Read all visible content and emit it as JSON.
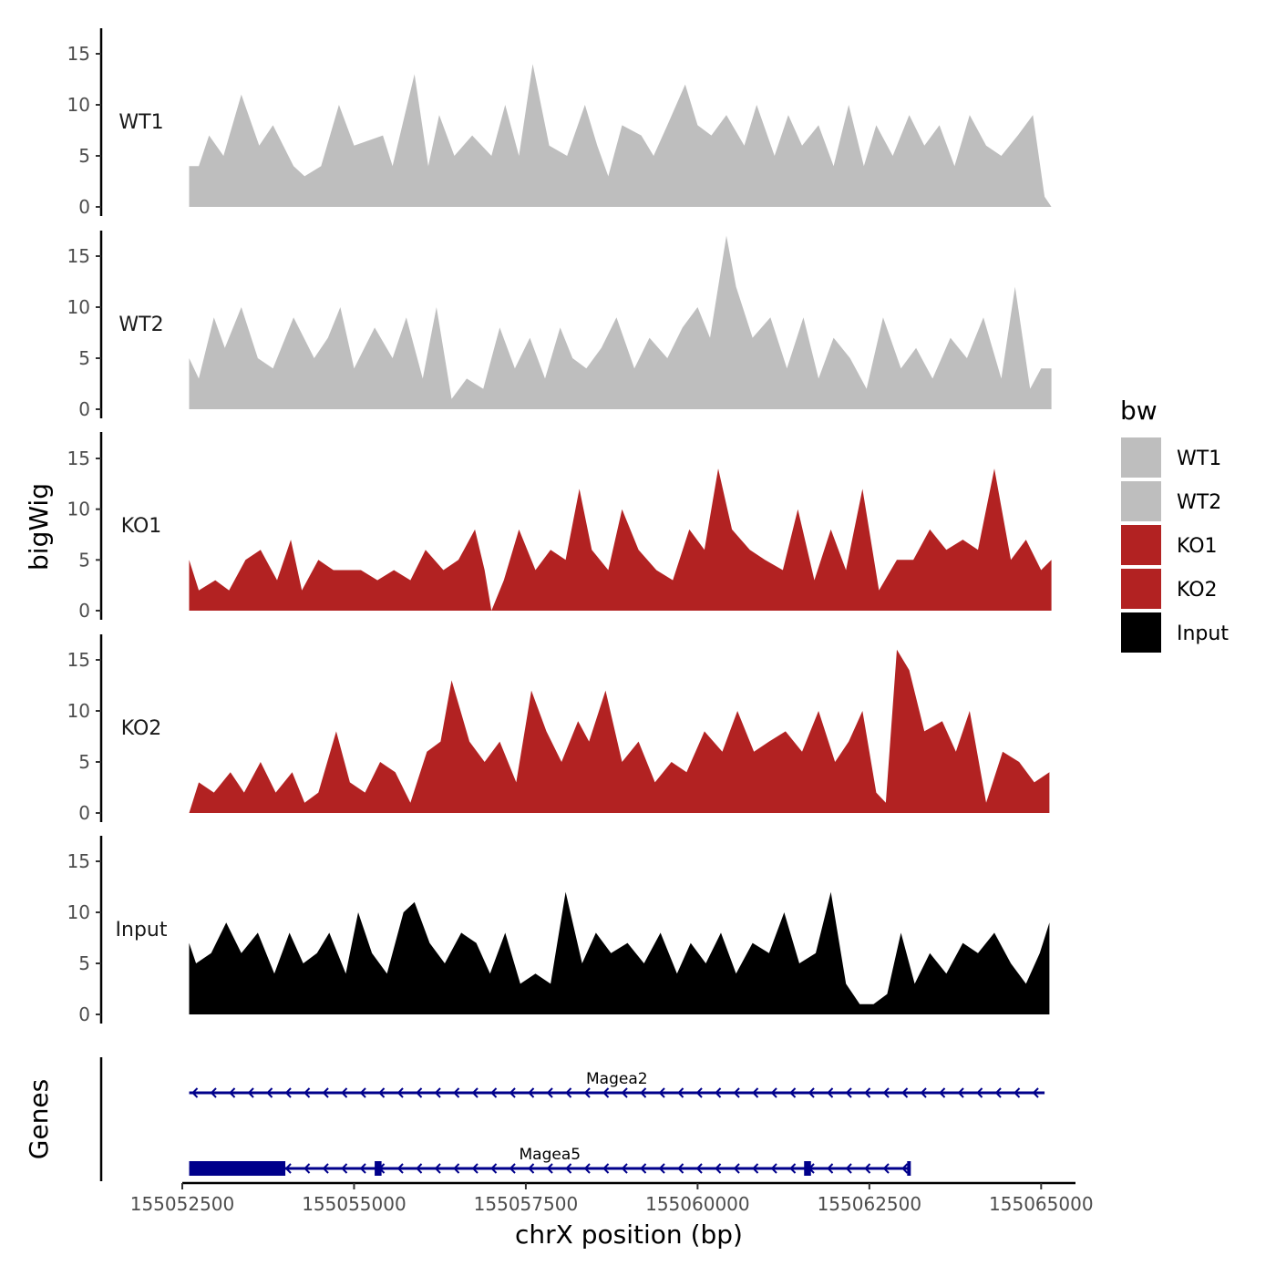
{
  "chart_data": {
    "type": "area",
    "ylabel": "bigWig",
    "xlabel": "chrX position (bp)",
    "xlim": [
      155052500,
      155065500
    ],
    "ylim": [
      0,
      17
    ],
    "y_ticks": [
      0,
      5,
      10,
      15
    ],
    "x_ticks": [
      155052500,
      155055000,
      155057500,
      155060000,
      155062500,
      155065000
    ],
    "x_tick_labels": [
      "155052500",
      "155055000",
      "155057500",
      "155060000",
      "155062500",
      "155065000"
    ],
    "legend": {
      "title": "bw",
      "placement": "right",
      "entries": [
        {
          "label": "WT1",
          "color": "#bebebe"
        },
        {
          "label": "WT2",
          "color": "#bebebe"
        },
        {
          "label": "KO1",
          "color": "#b22222"
        },
        {
          "label": "KO2",
          "color": "#b22222"
        },
        {
          "label": "Input",
          "color": "#000000"
        }
      ]
    },
    "series": [
      {
        "name": "WT1",
        "color": "#bebebe",
        "x": [
          155052600,
          155052740,
          155052890,
          155053100,
          155053360,
          155053620,
          155053820,
          155054120,
          155054280,
          155054520,
          155054780,
          155055000,
          155055420,
          155055560,
          155055880,
          155056080,
          155056240,
          155056460,
          155056720,
          155057000,
          155057200,
          155057400,
          155057600,
          155057840,
          155058100,
          155058360,
          155058540,
          155058700,
          155058900,
          155059180,
          155059360,
          155059560,
          155059820,
          155060000,
          155060200,
          155060420,
          155060680,
          155060860,
          155061120,
          155061320,
          155061520,
          155061760,
          155061980,
          155062200,
          155062420,
          155062600,
          155062840,
          155063080,
          155063300,
          155063520,
          155063740,
          155063960,
          155064200,
          155064420,
          155064660,
          155064880,
          155065050,
          155065150
        ],
        "values": [
          4,
          4,
          7,
          5,
          11,
          6,
          8,
          4,
          3,
          4,
          10,
          6,
          7,
          4,
          13,
          4,
          9,
          5,
          7,
          5,
          10,
          5,
          14,
          6,
          5,
          10,
          6,
          3,
          8,
          7,
          5,
          8,
          12,
          8,
          7,
          9,
          6,
          10,
          5,
          9,
          6,
          8,
          4,
          10,
          4,
          8,
          5,
          9,
          6,
          8,
          4,
          9,
          6,
          5,
          7,
          9,
          1,
          0
        ]
      },
      {
        "name": "WT2",
        "color": "#bebebe",
        "x": [
          155052600,
          155052740,
          155052960,
          155053120,
          155053360,
          155053600,
          155053820,
          155054120,
          155054420,
          155054620,
          155054800,
          155055000,
          155055300,
          155055560,
          155055760,
          155056000,
          155056200,
          155056420,
          155056640,
          155056880,
          155057120,
          155057340,
          155057560,
          155057780,
          155058000,
          155058180,
          155058380,
          155058600,
          155058820,
          155059080,
          155059300,
          155059560,
          155059780,
          155060000,
          155060180,
          155060420,
          155060560,
          155060800,
          155061060,
          155061300,
          155061540,
          155061760,
          155061980,
          155062220,
          155062460,
          155062700,
          155062960,
          155063180,
          155063420,
          155063680,
          155063920,
          155064160,
          155064420,
          155064620,
          155064840,
          155065000,
          155065150
        ],
        "values": [
          5,
          3,
          9,
          6,
          10,
          5,
          4,
          9,
          5,
          7,
          10,
          4,
          8,
          5,
          9,
          3,
          10,
          1,
          3,
          2,
          8,
          4,
          7,
          3,
          8,
          5,
          4,
          6,
          9,
          4,
          7,
          5,
          8,
          10,
          7,
          17,
          12,
          7,
          9,
          4,
          9,
          3,
          7,
          5,
          2,
          9,
          4,
          6,
          3,
          7,
          5,
          9,
          3,
          12,
          2,
          4,
          4
        ]
      },
      {
        "name": "KO1",
        "color": "#b22222",
        "x": [
          155052600,
          155052740,
          155052980,
          155053180,
          155053420,
          155053640,
          155053880,
          155054080,
          155054240,
          155054480,
          155054700,
          155054900,
          155055100,
          155055340,
          155055580,
          155055820,
          155056040,
          155056300,
          155056520,
          155056760,
          155056900,
          155057000,
          155057180,
          155057400,
          155057640,
          155057860,
          155058080,
          155058280,
          155058460,
          155058700,
          155058900,
          155059140,
          155059400,
          155059640,
          155059880,
          155060100,
          155060300,
          155060500,
          155060760,
          155060980,
          155061240,
          155061460,
          155061700,
          155061940,
          155062160,
          155062400,
          155062640,
          155062900,
          155063140,
          155063380,
          155063620,
          155063860,
          155064080,
          155064320,
          155064560,
          155064780,
          155065000,
          155065150
        ],
        "values": [
          5,
          2,
          3,
          2,
          5,
          6,
          3,
          7,
          2,
          5,
          4,
          4,
          4,
          3,
          4,
          3,
          6,
          4,
          5,
          8,
          4,
          0,
          3,
          8,
          4,
          6,
          5,
          12,
          6,
          4,
          10,
          6,
          4,
          3,
          8,
          6,
          14,
          8,
          6,
          5,
          4,
          10,
          3,
          8,
          4,
          12,
          2,
          5,
          5,
          8,
          6,
          7,
          6,
          14,
          5,
          7,
          4,
          5
        ]
      },
      {
        "name": "KO2",
        "color": "#b22222",
        "x": [
          155052600,
          155052740,
          155052960,
          155053200,
          155053400,
          155053640,
          155053860,
          155054100,
          155054280,
          155054480,
          155054740,
          155054940,
          155055160,
          155055380,
          155055600,
          155055820,
          155056060,
          155056260,
          155056420,
          155056680,
          155056900,
          155057120,
          155057360,
          155057580,
          155057800,
          155058020,
          155058260,
          155058420,
          155058660,
          155058900,
          155059140,
          155059380,
          155059620,
          155059840,
          155060100,
          155060360,
          155060580,
          155060820,
          155061040,
          155061280,
          155061520,
          155061760,
          155062000,
          155062200,
          155062400,
          155062600,
          155062740,
          155062900,
          155063080,
          155063300,
          155063560,
          155063760,
          155063960,
          155064200,
          155064440,
          155064680,
          155064900,
          155065120
        ],
        "values": [
          0,
          3,
          2,
          4,
          2,
          5,
          2,
          4,
          1,
          2,
          8,
          3,
          2,
          5,
          4,
          1,
          6,
          7,
          13,
          7,
          5,
          7,
          3,
          12,
          8,
          5,
          9,
          7,
          12,
          5,
          7,
          3,
          5,
          4,
          8,
          6,
          10,
          6,
          7,
          8,
          6,
          10,
          5,
          7,
          10,
          2,
          1,
          16,
          14,
          8,
          9,
          6,
          10,
          1,
          6,
          5,
          3,
          4
        ]
      },
      {
        "name": "Input",
        "color": "#000000",
        "x": [
          155052600,
          155052700,
          155052920,
          155053140,
          155053360,
          155053600,
          155053840,
          155054060,
          155054260,
          155054460,
          155054640,
          155054880,
          155055060,
          155055260,
          155055480,
          155055720,
          155055880,
          155056100,
          155056320,
          155056560,
          155056780,
          155056980,
          155057200,
          155057420,
          155057640,
          155057860,
          155058080,
          155058320,
          155058520,
          155058740,
          155058980,
          155059220,
          155059460,
          155059700,
          155059900,
          155060120,
          155060340,
          155060560,
          155060800,
          155061040,
          155061260,
          155061480,
          155061720,
          155061940,
          155062160,
          155062360,
          155062560,
          155062760,
          155062960,
          155063160,
          155063380,
          155063620,
          155063860,
          155064080,
          155064320,
          155064560,
          155064780,
          155064980,
          155065120
        ],
        "values": [
          7,
          5,
          6,
          9,
          6,
          8,
          4,
          8,
          5,
          6,
          8,
          4,
          10,
          6,
          4,
          10,
          11,
          7,
          5,
          8,
          7,
          4,
          8,
          3,
          4,
          3,
          12,
          5,
          8,
          6,
          7,
          5,
          8,
          4,
          7,
          5,
          8,
          4,
          7,
          6,
          10,
          5,
          6,
          12,
          3,
          1,
          1,
          2,
          8,
          3,
          6,
          4,
          7,
          6,
          8,
          5,
          3,
          6,
          9
        ]
      }
    ],
    "gene_track": {
      "ylabel": "Genes",
      "genes": [
        {
          "name": "Magea2",
          "start": 155052600,
          "end": 155065050,
          "strand": "-",
          "exons": []
        },
        {
          "name": "Magea5",
          "start": 155052600,
          "end": 155063100,
          "strand": "-",
          "exons": [
            [
              155052600,
              155054000
            ],
            [
              155055300,
              155055400
            ],
            [
              155061550,
              155061650
            ],
            [
              155063050,
              155063100
            ]
          ]
        }
      ]
    }
  }
}
